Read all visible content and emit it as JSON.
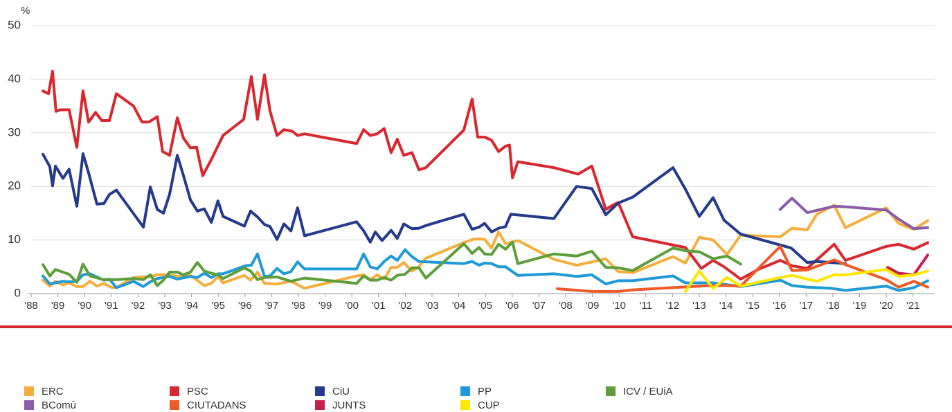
{
  "chart_data": {
    "type": "line",
    "ylabel": "%",
    "xlim": [
      1988,
      2021.81
    ],
    "ylim": [
      0,
      50
    ],
    "yticks": [
      0,
      10,
      20,
      30,
      40,
      50
    ],
    "grid": true,
    "legend": "bottom",
    "xticks": [
      {
        "value": 1988,
        "label": "'88"
      },
      {
        "value": 1989,
        "label": "'89"
      },
      {
        "value": 1990,
        "label": "'90"
      },
      {
        "value": 1991,
        "label": "'91"
      },
      {
        "value": 1992,
        "label": "'92"
      },
      {
        "value": 1993,
        "label": "'93"
      },
      {
        "value": 1994,
        "label": "'94"
      },
      {
        "value": 1995,
        "label": "'95"
      },
      {
        "value": 1996,
        "label": "'96"
      },
      {
        "value": 1997,
        "label": "'97"
      },
      {
        "value": 1998,
        "label": "'98"
      },
      {
        "value": 1999,
        "label": "'99"
      },
      {
        "value": 2000,
        "label": "'00"
      },
      {
        "value": 2001,
        "label": "'01"
      },
      {
        "value": 2002,
        "label": "'02"
      },
      {
        "value": 2003,
        "label": "'03"
      },
      {
        "value": 2004,
        "label": "'04"
      },
      {
        "value": 2005,
        "label": "'05"
      },
      {
        "value": 2006,
        "label": "'06"
      },
      {
        "value": 2007,
        "label": "'07"
      },
      {
        "value": 2008,
        "label": "'08"
      },
      {
        "value": 2009,
        "label": "'09"
      },
      {
        "value": 2010,
        "label": "'10"
      },
      {
        "value": 2011,
        "label": "'11"
      },
      {
        "value": 2012,
        "label": "'12"
      },
      {
        "value": 2013,
        "label": "'13"
      },
      {
        "value": 2014,
        "label": "'14"
      },
      {
        "value": 2015,
        "label": "'15"
      },
      {
        "value": 2016,
        "label": "'16"
      },
      {
        "value": 2017,
        "label": "'17"
      },
      {
        "value": 2018,
        "label": "'18"
      },
      {
        "value": 2019,
        "label": "'19"
      },
      {
        "value": 2020,
        "label": "'20"
      },
      {
        "value": 2021,
        "label": "'21"
      }
    ],
    "series": [
      {
        "name": "ERC",
        "color": "#f5ae3d",
        "x": [
          1988.44,
          1988.7,
          1988.91,
          1989.19,
          1989.42,
          1989.71,
          1989.94,
          1990.2,
          1990.46,
          1990.72,
          1990.98,
          1991.19,
          1991.83,
          1992.46,
          1992.72,
          1993.18,
          1993.47,
          1993.96,
          1994.48,
          1994.74,
          1994.99,
          1995.18,
          1995.98,
          1996.21,
          1996.47,
          1996.73,
          1997.2,
          1997.72,
          1998.23,
          2000.18,
          2000.44,
          2000.69,
          2000.95,
          2001.21,
          2001.47,
          2001.7,
          2001.94,
          2002.25,
          2002.51,
          2002.77,
          2004.19,
          2004.5,
          2004.76,
          2004.97,
          2005.23,
          2005.49,
          2005.75,
          2006.21,
          2007.56,
          2008.41,
          2008.98,
          2009.5,
          2009.97,
          2010.51,
          2012.02,
          2012.48,
          2013.0,
          2013.52,
          2014.04,
          2014.55,
          2016.03,
          2016.47,
          2017.04,
          2017.4,
          2018.05,
          2018.47,
          2019.99,
          2020.46,
          2021.03,
          2021.55
        ],
        "values": [
          2.5,
          1.4,
          2.3,
          1.6,
          2.0,
          1.3,
          1.3,
          2.3,
          1.4,
          1.9,
          1.2,
          1.1,
          3.0,
          3.2,
          3.5,
          3.5,
          3.2,
          3.4,
          1.5,
          1.9,
          3.2,
          2.0,
          3.4,
          2.5,
          4.0,
          1.9,
          1.8,
          2.3,
          1.0,
          3.3,
          3.5,
          2.6,
          3.5,
          2.7,
          4.9,
          4.9,
          5.8,
          4.2,
          5.0,
          6.6,
          9.5,
          10.1,
          10.2,
          10.1,
          8.5,
          11.5,
          9.3,
          9.9,
          6.4,
          5.3,
          5.9,
          6.5,
          4.1,
          3.9,
          6.9,
          5.7,
          10.5,
          10.0,
          7.3,
          10.9,
          10.6,
          12.2,
          11.9,
          14.8,
          16.5,
          12.3,
          16.0,
          13.1,
          12.0,
          13.6
        ]
      },
      {
        "name": "PSC",
        "color": "#d7282f",
        "x": [
          1988.44,
          1988.65,
          1988.8,
          1988.93,
          1989.11,
          1989.42,
          1989.71,
          1989.94,
          1990.15,
          1990.41,
          1990.64,
          1990.93,
          1991.19,
          1991.83,
          1992.15,
          1992.4,
          1992.72,
          1992.92,
          1993.18,
          1993.47,
          1993.7,
          1993.96,
          1994.19,
          1994.42,
          1994.74,
          1995.18,
          1995.95,
          1996.24,
          1996.47,
          1996.73,
          1996.94,
          1997.2,
          1997.46,
          1997.77,
          1997.97,
          1998.23,
          2000.18,
          2000.44,
          2000.69,
          2000.95,
          2001.21,
          2001.47,
          2001.7,
          2001.94,
          2002.25,
          2002.51,
          2002.77,
          2004.19,
          2004.5,
          2004.71,
          2004.97,
          2005.23,
          2005.49,
          2005.75,
          2005.9,
          2006.01,
          2006.21,
          2007.56,
          2008.47,
          2008.98,
          2009.5,
          2009.76,
          2009.97,
          2010.51,
          2012.48,
          2013.08,
          2013.52,
          2013.93,
          2014.55,
          2015.2,
          2016.03,
          2016.47,
          2017.04,
          2018.05,
          2018.47,
          2019.99,
          2020.46,
          2021.03,
          2021.55
        ],
        "values": [
          37.8,
          37.3,
          41.5,
          34.0,
          34.3,
          34.3,
          27.3,
          37.8,
          32.0,
          33.8,
          32.3,
          32.3,
          37.3,
          35.0,
          32.0,
          32.0,
          33.0,
          26.5,
          25.8,
          32.8,
          29.0,
          27.2,
          27.3,
          22.0,
          25.0,
          29.5,
          32.5,
          40.5,
          32.5,
          40.8,
          34.0,
          29.5,
          30.6,
          30.3,
          29.5,
          29.8,
          28.0,
          30.6,
          29.5,
          29.8,
          30.8,
          26.3,
          28.8,
          25.8,
          26.3,
          23.1,
          23.5,
          30.5,
          36.3,
          29.2,
          29.2,
          28.6,
          26.5,
          27.5,
          27.7,
          21.6,
          24.6,
          23.5,
          22.3,
          23.8,
          15.7,
          16.5,
          17.0,
          10.6,
          8.6,
          4.7,
          6.2,
          5.0,
          2.7,
          4.5,
          6.2,
          5.2,
          4.7,
          9.2,
          6.2,
          8.8,
          9.2,
          8.3,
          9.5
        ]
      },
      {
        "name": "CiU",
        "color": "#253a8a",
        "x": [
          1988.44,
          1988.7,
          1988.8,
          1988.91,
          1989.19,
          1989.42,
          1989.71,
          1989.94,
          1990.15,
          1990.46,
          1990.72,
          1990.93,
          1991.19,
          1992.2,
          1992.46,
          1992.72,
          1992.95,
          1993.18,
          1993.47,
          1993.7,
          1993.96,
          1994.22,
          1994.48,
          1994.74,
          1994.99,
          1995.18,
          1995.98,
          1996.21,
          1996.47,
          1996.73,
          1996.94,
          1997.2,
          1997.46,
          1997.72,
          1997.97,
          1998.23,
          2000.18,
          2000.44,
          2000.69,
          2000.88,
          2001.13,
          2001.47,
          2001.7,
          2001.94,
          2002.25,
          2002.51,
          2002.77,
          2004.19,
          2004.5,
          2004.76,
          2004.97,
          2005.23,
          2005.49,
          2005.75,
          2005.95,
          2007.56,
          2008.41,
          2008.98,
          2009.5,
          2009.97,
          2010.51,
          2012.02,
          2012.48,
          2013.0,
          2013.52,
          2013.93,
          2014.55,
          2016.44,
          2017.04,
          2017.4,
          2018.47
        ],
        "values": [
          26.0,
          23.7,
          20.1,
          23.8,
          21.5,
          23.2,
          16.3,
          26.1,
          22.5,
          16.7,
          16.8,
          18.5,
          19.3,
          12.4,
          19.9,
          15.7,
          15.0,
          18.5,
          25.8,
          22.0,
          17.5,
          15.4,
          15.8,
          13.3,
          17.3,
          14.4,
          12.6,
          15.4,
          14.3,
          12.9,
          12.5,
          10.1,
          13.0,
          11.7,
          16.0,
          10.8,
          13.4,
          11.7,
          9.6,
          11.5,
          9.9,
          11.8,
          10.3,
          13.0,
          12.1,
          12.2,
          12.7,
          14.8,
          12.0,
          12.4,
          13.1,
          11.5,
          12.2,
          12.5,
          14.8,
          14.0,
          20.0,
          19.6,
          14.7,
          16.9,
          18.0,
          23.5,
          19.5,
          14.4,
          17.9,
          13.7,
          11.1,
          8.5,
          5.8,
          6.0,
          5.6
        ]
      },
      {
        "name": "PP",
        "color": "#1e9ad6",
        "x": [
          1988.44,
          1988.7,
          1988.91,
          1989.19,
          1989.42,
          1989.71,
          1989.94,
          1990.2,
          1990.72,
          1990.93,
          1991.19,
          1991.83,
          1992.2,
          1992.46,
          1992.72,
          1993.18,
          1993.47,
          1993.96,
          1994.22,
          1994.48,
          1994.74,
          1994.99,
          1995.18,
          1996.03,
          1996.24,
          1996.47,
          1996.73,
          1996.94,
          1997.2,
          1997.46,
          1997.72,
          1997.97,
          1998.23,
          2000.18,
          2000.44,
          2000.69,
          2000.95,
          2001.21,
          2001.47,
          2001.7,
          2001.99,
          2002.25,
          2002.51,
          2004.19,
          2004.5,
          2004.76,
          2004.97,
          2005.23,
          2005.49,
          2005.75,
          2006.21,
          2007.56,
          2008.41,
          2008.98,
          2009.5,
          2009.97,
          2010.51,
          2012.02,
          2012.48,
          2013.52,
          2014.55,
          2016.03,
          2016.47,
          2017.04,
          2017.92,
          2018.47,
          2019.99,
          2020.46,
          2021.03,
          2021.55
        ],
        "values": [
          3.3,
          1.8,
          2.0,
          2.3,
          2.2,
          2.3,
          3.5,
          3.7,
          2.5,
          2.7,
          1.1,
          2.3,
          1.3,
          2.2,
          2.8,
          3.2,
          2.7,
          3.2,
          3.0,
          3.8,
          3.0,
          3.7,
          3.7,
          5.2,
          5.3,
          7.4,
          3.2,
          3.3,
          4.7,
          3.7,
          4.1,
          5.9,
          4.6,
          4.6,
          7.4,
          5.0,
          4.6,
          6.0,
          7.0,
          6.2,
          8.2,
          6.9,
          6.0,
          5.6,
          6.0,
          5.3,
          5.7,
          5.6,
          5.0,
          5.0,
          3.4,
          3.7,
          3.2,
          3.5,
          1.8,
          2.4,
          2.4,
          3.3,
          2.0,
          2.0,
          1.3,
          2.5,
          1.5,
          1.2,
          1.0,
          0.6,
          1.4,
          0.6,
          1.1,
          2.4
        ]
      },
      {
        "name": "ICV / EUiA",
        "color": "#5d9e3a",
        "x": [
          1988.44,
          1988.7,
          1988.91,
          1989.19,
          1989.42,
          1989.71,
          1989.94,
          1990.2,
          1990.72,
          1991.19,
          1991.83,
          1992.2,
          1992.46,
          1992.72,
          1992.95,
          1993.18,
          1993.47,
          1993.7,
          1993.96,
          1994.22,
          1994.48,
          1994.74,
          1994.99,
          1995.18,
          1995.98,
          1996.21,
          1996.47,
          1996.73,
          1997.2,
          1997.72,
          1998.23,
          2000.18,
          2000.44,
          2000.69,
          2000.95,
          2001.21,
          2001.47,
          2001.7,
          2001.99,
          2002.25,
          2002.51,
          2002.77,
          2004.19,
          2004.5,
          2004.76,
          2004.97,
          2005.23,
          2005.49,
          2005.75,
          2006.01,
          2006.21,
          2007.56,
          2008.41,
          2008.98,
          2009.5,
          2009.97,
          2010.51,
          2012.02,
          2012.48,
          2013.0,
          2013.52,
          2014.04,
          2014.55
        ],
        "values": [
          5.4,
          3.3,
          4.5,
          4.0,
          3.6,
          2.1,
          5.5,
          3.3,
          2.6,
          2.6,
          2.8,
          2.6,
          3.5,
          1.5,
          2.5,
          4.0,
          4.0,
          3.5,
          4.0,
          5.8,
          4.2,
          3.8,
          3.5,
          2.8,
          4.8,
          4.2,
          2.6,
          3.0,
          3.1,
          2.3,
          2.9,
          1.9,
          3.3,
          2.5,
          2.5,
          3.0,
          2.5,
          3.4,
          3.6,
          4.8,
          4.8,
          2.9,
          9.3,
          7.5,
          8.6,
          7.4,
          7.3,
          9.2,
          8.3,
          9.6,
          5.6,
          7.4,
          7.0,
          7.9,
          4.9,
          4.8,
          4.3,
          8.5,
          8.0,
          7.8,
          6.5,
          7.0,
          5.5
        ]
      },
      {
        "name": "BComú",
        "color": "#8b5ba8",
        "x": [
          2016.03,
          2016.47,
          2017.04,
          2018.05,
          2018.47,
          2019.99,
          2020.46,
          2021.03,
          2021.55
        ],
        "values": [
          15.7,
          17.8,
          15.1,
          16.3,
          16.2,
          15.6,
          13.9,
          12.1,
          12.3
        ]
      },
      {
        "name": "CIUTADANS",
        "color": "#ef5a28",
        "x": [
          2007.69,
          2008.98,
          2009.97,
          2010.51,
          2013.0,
          2013.52,
          2014.04,
          2014.55,
          2016.03,
          2016.47,
          2017.04,
          2018.05,
          2018.47,
          2019.99,
          2020.46,
          2021.03,
          2021.55
        ],
        "values": [
          0.9,
          0.4,
          0.4,
          0.7,
          1.4,
          1.5,
          1.5,
          1.4,
          8.8,
          4.3,
          4.4,
          6.3,
          5.4,
          2.6,
          1.2,
          2.3,
          1.2
        ]
      },
      {
        "name": "JUNTS",
        "color": "#c8204d",
        "x": [
          2020.05,
          2020.46,
          2021.03,
          2021.55
        ],
        "values": [
          4.9,
          3.8,
          3.5,
          7.2
        ]
      },
      {
        "name": "CUP",
        "color": "#ffe600",
        "x": [
          2012.48,
          2013.0,
          2013.52,
          2014.04,
          2014.55,
          2016.03,
          2016.47,
          2017.04,
          2017.4,
          2018.05,
          2018.47,
          2019.99,
          2020.46,
          2021.03,
          2021.55
        ],
        "values": [
          0.4,
          4.2,
          1.0,
          3.0,
          1.4,
          3.0,
          3.4,
          2.7,
          2.3,
          3.5,
          3.5,
          4.5,
          3.2,
          3.5,
          4.2
        ]
      }
    ]
  }
}
